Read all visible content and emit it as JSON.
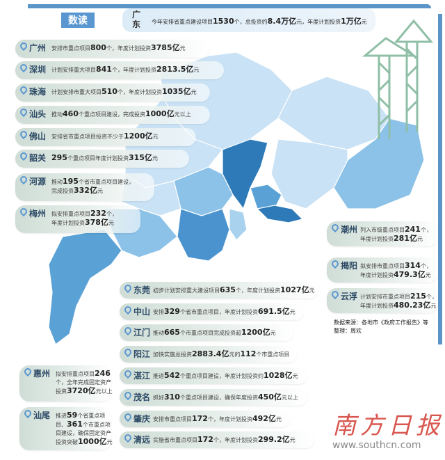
{
  "header": {
    "badge": "数读",
    "province": "广东",
    "summary": "今年安排省重点建设项目1530个，总投资约8.4万亿元，年度计划投资1万亿元"
  },
  "colors": {
    "frame": "#5b95c8",
    "badge": "#5a97d0",
    "map_light": "#c9e2f5",
    "map_mid": "#8cc2e8",
    "map_dark": "#2e7ab8",
    "logo": "#d9564f"
  },
  "cities": [
    {
      "name": "广州",
      "text": "安排市重点项目800个，年度计划投资3785亿元"
    },
    {
      "name": "深圳",
      "text": "计划安排重大项目841个，年度计划投资2813.5亿元"
    },
    {
      "name": "珠海",
      "text": "计划安排市重大项目510个，年度计划投资1035亿元"
    },
    {
      "name": "汕头",
      "text": "推动460个重点项目建设，完成投资1000亿元以上"
    },
    {
      "name": "佛山",
      "text": "安排省市重点项目投资不少于1200亿元"
    },
    {
      "name": "韶关",
      "text": "295个重点项目年度计划投资315亿元"
    },
    {
      "name": "河源",
      "text": "推动195个省市重点项目建设，\n完成投资332亿元"
    },
    {
      "name": "梅州",
      "text": "拟安排重点项目232个，\n年度计划投资378亿元"
    },
    {
      "name": "潮州",
      "text": "列入市级重点项目241个，\n年度计划投资281亿元"
    },
    {
      "name": "揭阳",
      "text": "拟安排市重点项目314个，\n年度计划投资479.3亿元"
    },
    {
      "name": "云浮",
      "text": "计划安排市重点项目215个，\n年度计划投资480.23亿元"
    },
    {
      "name": "东莞",
      "text": "初步计划安排重大建设项目635个，年度计划投资1027亿元"
    },
    {
      "name": "中山",
      "text": "安排329个省市重点项目，年度计划投资691.5亿元"
    },
    {
      "name": "江门",
      "text": "推动665个市重点项目完成投资超1200亿元"
    },
    {
      "name": "阳江",
      "text": "加快实施总投资2883.4亿元的112个市重点项目"
    },
    {
      "name": "湛江",
      "text": "推进542个重点项目建设，年度计划投资约1028亿元"
    },
    {
      "name": "茂名",
      "text": "抓好310个重点项目建设，确保年度投资450亿元以上"
    },
    {
      "name": "肇庆",
      "text": "安排市重点项目172个，年度计划投资492亿元"
    },
    {
      "name": "清远",
      "text": "实施省市重点项目172个，年度计划投资299.2亿元"
    },
    {
      "name": "惠州",
      "text": "拟安排重点项目246\n个，全年完成固定资产\n投资3720亿元以上"
    },
    {
      "name": "汕尾",
      "text": "推进59个省重点项\n目、361个市重点项\n目建设，确保固定资产\n投资突破1000亿元"
    }
  ],
  "source": {
    "line1": "数据来源：各地市《政府工作报告》等",
    "line2": "整理：周欢"
  },
  "logo": {
    "name": "南方日报",
    "url": "www.southcn.com"
  }
}
